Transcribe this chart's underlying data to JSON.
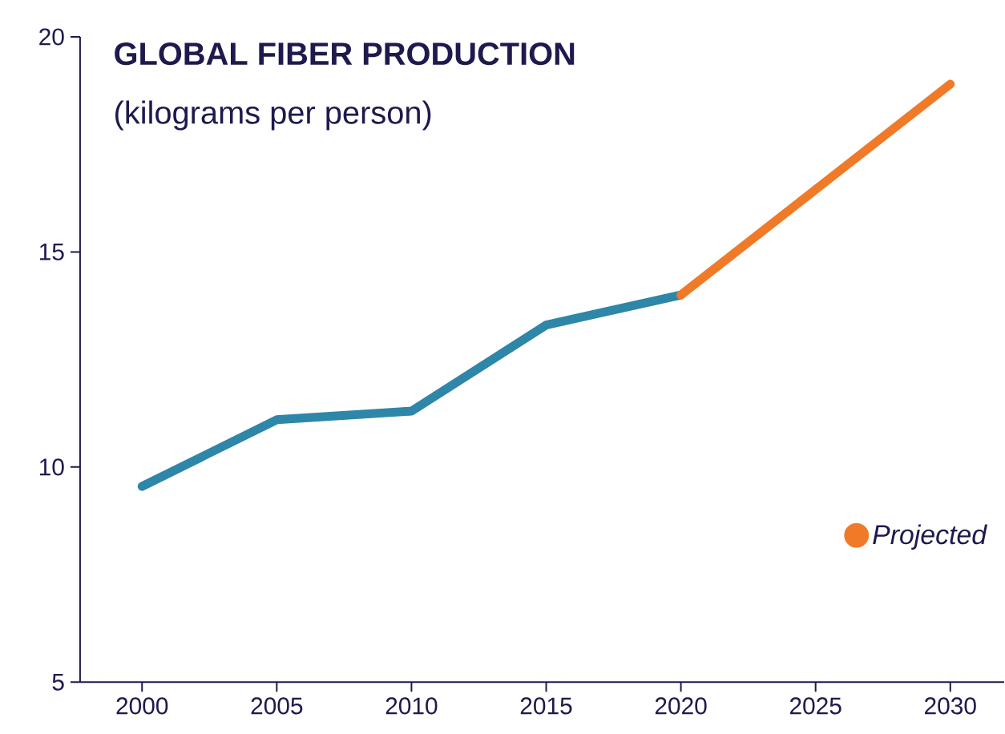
{
  "chart_data": {
    "type": "line",
    "title": "GLOBAL FIBER PRODUCTION",
    "subtitle": "(kilograms per person)",
    "series": [
      {
        "x": [
          2000,
          2005,
          2010,
          2015,
          2020
        ],
        "values": [
          9.55,
          11.1,
          11.3,
          13.3,
          14.0
        ],
        "color": "#2e86a8"
      },
      {
        "name": "Projected",
        "x": [
          2020,
          2025,
          2030
        ],
        "values": [
          14.0,
          16.45,
          18.9
        ],
        "color": "#f07a28"
      }
    ],
    "xlim": [
      1997.7,
      2032
    ],
    "xticks": [
      2000,
      2005,
      2010,
      2015,
      2020,
      2025,
      2030
    ],
    "ylim": [
      5,
      20
    ],
    "yticks": [
      5,
      10,
      15,
      20
    ],
    "grid": false,
    "legend": "bottom right",
    "marker": "none",
    "line_style": "solid"
  }
}
